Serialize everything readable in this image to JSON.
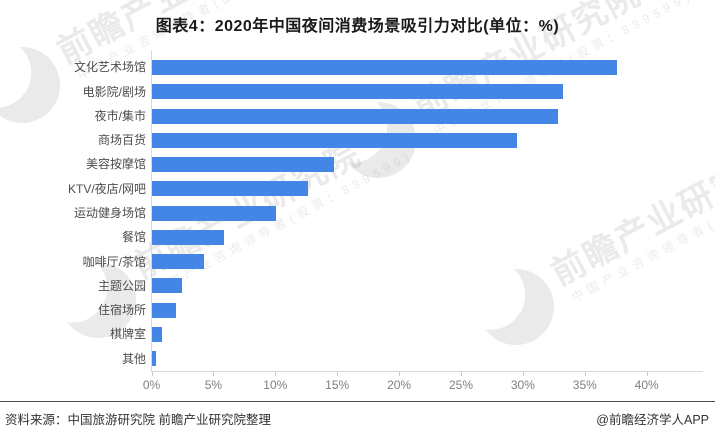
{
  "title": "图表4：2020年中国夜间消费场景吸引力对比(单位：%)",
  "chart_data": {
    "type": "bar",
    "orientation": "horizontal",
    "title": "图表4：2020年中国夜间消费场景吸引力对比(单位：%)",
    "unit": "%",
    "categories": [
      "文化艺术场馆",
      "电影院/剧场",
      "夜市/集市",
      "商场百货",
      "美容按摩馆",
      "KTV/夜店/网吧",
      "运动健身场馆",
      "餐馆",
      "咖啡厅/茶馆",
      "主题公园",
      "住宿场所",
      "棋牌室",
      "其他"
    ],
    "values": [
      37.6,
      33.2,
      32.8,
      29.5,
      14.7,
      12.6,
      10.0,
      5.8,
      4.2,
      2.4,
      1.9,
      0.8,
      0.3
    ],
    "x_tick_labels": [
      "0%",
      "5%",
      "10%",
      "15%",
      "20%",
      "25%",
      "30%",
      "35%",
      "40%"
    ],
    "xlim": [
      0,
      44.3
    ],
    "xlabel": "",
    "ylabel": "",
    "grid": false,
    "legend": false,
    "bar_color": "#4486e5"
  },
  "footer": {
    "source": "资料来源：中国旅游研究院 前瞻产业研究院整理",
    "credit": "@前瞻经济学人APP"
  },
  "watermark": {
    "brand": "前瞻产业研究院",
    "tagline": "中国产业咨询领导者(股票：839599)",
    "logo_icon": "qianzhan-circle-logo"
  }
}
